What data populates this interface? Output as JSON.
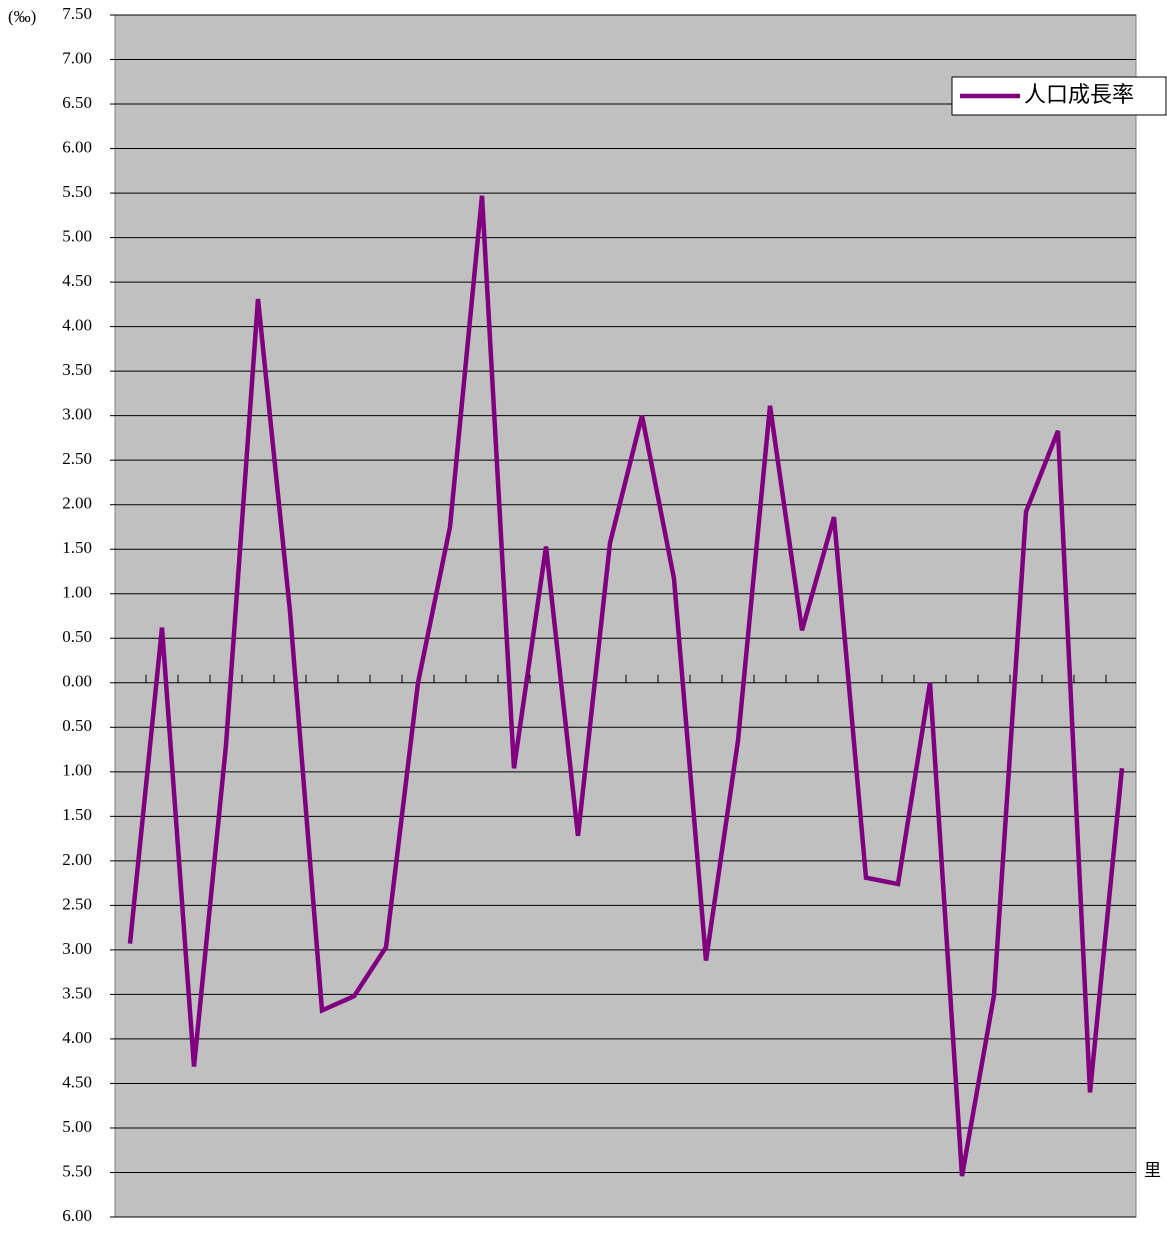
{
  "chart_data": {
    "type": "line",
    "y_label": "(‰)",
    "x_label": "里",
    "categories": [
      null,
      null,
      null,
      null,
      null,
      null,
      null,
      null,
      null,
      null,
      null,
      null,
      null,
      null,
      null,
      null,
      null,
      null,
      null,
      null,
      null,
      null,
      null,
      null,
      null,
      null,
      null,
      null,
      null,
      null,
      null,
      null
    ],
    "series": [
      {
        "name": "人口成長率",
        "color": "#800080",
        "values": [
          -2.93,
          0.62,
          -4.31,
          -0.7,
          4.31,
          0.8,
          -3.68,
          -3.52,
          -2.97,
          0,
          1.75,
          5.47,
          -0.96,
          1.53,
          -1.72,
          1.57,
          3.0,
          1.17,
          -3.12,
          -0.65,
          3.11,
          0.59,
          1.86,
          -2.19,
          -2.26,
          0,
          -5.54,
          -3.51,
          1.92,
          2.83,
          -4.6,
          -0.96
        ]
      }
    ],
    "ylim": [
      -6,
      7.5
    ],
    "yticks": [
      {
        "value": 7.5,
        "label": "7.50"
      },
      {
        "value": 7,
        "label": "7.00"
      },
      {
        "value": 6.5,
        "label": "6.50"
      },
      {
        "value": 6,
        "label": "6.00"
      },
      {
        "value": 5.5,
        "label": "5.50"
      },
      {
        "value": 5,
        "label": "5.00"
      },
      {
        "value": 4.5,
        "label": "4.50"
      },
      {
        "value": 4,
        "label": "4.00"
      },
      {
        "value": 3.5,
        "label": "3.50"
      },
      {
        "value": 3,
        "label": "3.00"
      },
      {
        "value": 2.5,
        "label": "2.50"
      },
      {
        "value": 2,
        "label": "2.00"
      },
      {
        "value": 1.5,
        "label": "1.50"
      },
      {
        "value": 1,
        "label": "1.00"
      },
      {
        "value": 0.5,
        "label": "0.50"
      },
      {
        "value": 0,
        "label": "0.00"
      },
      {
        "value": -0.5,
        "label": "0.50"
      },
      {
        "value": -1,
        "label": "1.00"
      },
      {
        "value": -1.5,
        "label": "1.50"
      },
      {
        "value": -2,
        "label": "2.00"
      },
      {
        "value": -2.5,
        "label": "2.50"
      },
      {
        "value": -3,
        "label": "3.00"
      },
      {
        "value": -3.5,
        "label": "3.50"
      },
      {
        "value": -4,
        "label": "4.00"
      },
      {
        "value": -4.5,
        "label": "4.50"
      },
      {
        "value": -5,
        "label": "5.00"
      },
      {
        "value": -5.5,
        "label": "5.50"
      },
      {
        "value": -6,
        "label": "6.00"
      }
    ],
    "grid": true,
    "legend": "top-right"
  }
}
